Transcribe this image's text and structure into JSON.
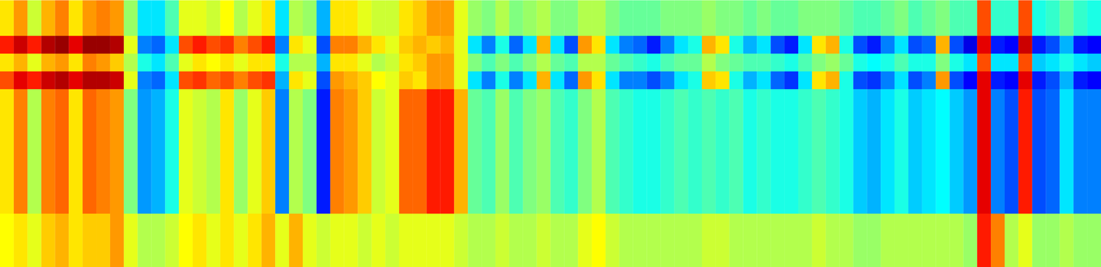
{
  "chart_data": {
    "type": "heatmap",
    "tick_labels": false,
    "zlim": [
      -1,
      1
    ],
    "cells": [
      [
        0.3,
        0.45,
        0.15,
        0.4,
        0.5,
        0.3,
        0.45,
        0.5,
        0.45,
        0.05,
        -0.3,
        -0.3,
        -0.1,
        0.2,
        0.2,
        0.15,
        0.25,
        0.1,
        0.2,
        0.3,
        -0.3,
        0.1,
        0.05,
        -0.4,
        0.3,
        0.3,
        0.2,
        0.15,
        0.15,
        0.3,
        0.35,
        0.45,
        0.45,
        0.2,
        0.05,
        0,
        0.1,
        0,
        0.05,
        0.1,
        0,
        0,
        0.1,
        0.1,
        0,
        -0.05,
        -0.05,
        -0.05,
        0,
        0,
        0,
        0.05,
        0,
        0,
        -0.05,
        0,
        -0.05,
        -0.05,
        0,
        0,
        0,
        -0.05,
        -0.1,
        -0.1,
        -0.05,
        0,
        -0.1,
        -0.05,
        0,
        -0.1,
        -0.1,
        0.6,
        -0.15,
        -0.15,
        0.6,
        -0.2,
        -0.15,
        -0.05,
        -0.15,
        -0.2
      ],
      [
        0.3,
        0.45,
        0.15,
        0.4,
        0.5,
        0.3,
        0.45,
        0.5,
        0.45,
        0.05,
        -0.3,
        -0.3,
        -0.1,
        0.2,
        0.2,
        0.15,
        0.25,
        0.1,
        0.2,
        0.3,
        -0.3,
        0.1,
        0.05,
        -0.4,
        0.3,
        0.3,
        0.2,
        0.15,
        0.15,
        0.3,
        0.35,
        0.45,
        0.45,
        0.2,
        0.05,
        0,
        0.1,
        0,
        0.05,
        0.1,
        0,
        0,
        0.1,
        0.1,
        0,
        -0.05,
        -0.05,
        -0.05,
        0,
        0,
        0,
        0.05,
        0,
        0,
        -0.05,
        0,
        -0.05,
        -0.05,
        0,
        0,
        0,
        -0.05,
        -0.1,
        -0.1,
        -0.05,
        0,
        -0.1,
        -0.05,
        0,
        -0.1,
        -0.1,
        0.6,
        -0.15,
        -0.15,
        0.6,
        -0.2,
        -0.15,
        -0.05,
        -0.15,
        -0.2
      ],
      [
        0.7,
        0.85,
        0.7,
        0.9,
        0.95,
        0.8,
        0.95,
        0.95,
        0.9,
        0.2,
        -0.5,
        -0.55,
        -0.3,
        0.6,
        0.7,
        0.6,
        0.65,
        0.5,
        0.6,
        0.7,
        -0.5,
        0.3,
        0.2,
        -0.6,
        0.5,
        0.5,
        0.4,
        0.3,
        0.2,
        0.35,
        0.4,
        0.35,
        0.4,
        0.2,
        -0.3,
        -0.5,
        -0.2,
        -0.55,
        -0.3,
        0.4,
        -0.3,
        -0.6,
        0.45,
        0.3,
        -0.3,
        -0.5,
        -0.55,
        -0.7,
        -0.5,
        -0.3,
        -0.2,
        0.4,
        0.3,
        -0.2,
        -0.4,
        -0.3,
        -0.6,
        -0.7,
        -0.3,
        0.3,
        0.4,
        -0.2,
        -0.6,
        -0.7,
        -0.5,
        -0.3,
        -0.6,
        -0.55,
        0.4,
        -0.6,
        -0.8,
        0.8,
        -0.7,
        -0.75,
        0.85,
        -0.7,
        -0.6,
        -0.4,
        -0.7,
        -0.75
      ],
      [
        0.3,
        0.4,
        0.2,
        0.4,
        0.45,
        0.3,
        0.5,
        0.45,
        0.35,
        0.1,
        -0.2,
        -0.3,
        -0.1,
        0.2,
        0.3,
        0.25,
        0.3,
        0.2,
        0.3,
        0.3,
        -0.2,
        0.1,
        0.1,
        -0.4,
        0.3,
        0.3,
        0.2,
        0.1,
        0.15,
        0.3,
        0.35,
        0.45,
        0.45,
        0.2,
        0,
        -0.1,
        0,
        -0.1,
        0,
        0.1,
        -0.05,
        -0.1,
        0.1,
        0.1,
        -0.05,
        -0.1,
        -0.15,
        -0.2,
        -0.1,
        -0.05,
        -0.05,
        0.1,
        0,
        -0.05,
        -0.1,
        -0.1,
        -0.15,
        -0.2,
        -0.1,
        0,
        0.05,
        -0.05,
        -0.2,
        -0.25,
        -0.2,
        -0.1,
        -0.2,
        -0.2,
        0,
        -0.2,
        -0.3,
        0.6,
        -0.3,
        -0.3,
        0.6,
        -0.35,
        -0.3,
        -0.2,
        -0.3,
        -0.35
      ],
      [
        0.6,
        0.8,
        0.7,
        0.85,
        0.9,
        0.8,
        0.9,
        0.9,
        0.85,
        0.2,
        -0.5,
        -0.55,
        -0.3,
        0.6,
        0.65,
        0.55,
        0.6,
        0.5,
        0.6,
        0.65,
        -0.4,
        0.3,
        0.2,
        -0.6,
        0.45,
        0.4,
        0.35,
        0.25,
        0.2,
        0.35,
        0.3,
        0.45,
        0.45,
        0.2,
        -0.3,
        -0.5,
        -0.2,
        -0.5,
        -0.3,
        0.4,
        -0.3,
        -0.55,
        0.45,
        0.3,
        -0.3,
        -0.5,
        -0.5,
        -0.6,
        -0.5,
        -0.3,
        -0.2,
        0.35,
        0.3,
        -0.2,
        -0.4,
        -0.3,
        -0.55,
        -0.65,
        -0.3,
        0.3,
        0.4,
        -0.2,
        -0.6,
        -0.65,
        -0.5,
        -0.3,
        -0.6,
        -0.5,
        0.45,
        -0.6,
        -0.75,
        0.8,
        -0.7,
        -0.75,
        0.8,
        -0.7,
        -0.6,
        -0.4,
        -0.7,
        -0.75
      ],
      [
        0.3,
        0.5,
        0.1,
        0.5,
        0.55,
        0.3,
        0.55,
        0.5,
        0.45,
        0,
        -0.45,
        -0.4,
        -0.2,
        0.2,
        0.15,
        0.1,
        0.3,
        0.05,
        0.2,
        0.35,
        -0.5,
        0.1,
        0,
        -0.7,
        0.5,
        0.45,
        0.35,
        0.15,
        0.2,
        0.55,
        0.55,
        0.7,
        0.7,
        0.4,
        -0.05,
        -0.1,
        0.05,
        -0.1,
        0,
        0.05,
        -0.1,
        -0.15,
        0,
        0.1,
        -0.1,
        -0.15,
        -0.2,
        -0.2,
        -0.15,
        -0.1,
        -0.15,
        -0.1,
        -0.15,
        -0.1,
        -0.2,
        -0.15,
        -0.2,
        -0.2,
        -0.15,
        -0.1,
        -0.15,
        -0.2,
        -0.35,
        -0.4,
        -0.3,
        -0.2,
        -0.35,
        -0.3,
        -0.25,
        -0.35,
        -0.45,
        0.8,
        -0.5,
        -0.6,
        0.7,
        -0.6,
        -0.55,
        -0.3,
        -0.5,
        -0.5
      ],
      [
        0.3,
        0.5,
        0.1,
        0.5,
        0.55,
        0.3,
        0.55,
        0.5,
        0.45,
        0,
        -0.45,
        -0.4,
        -0.2,
        0.2,
        0.15,
        0.1,
        0.3,
        0.05,
        0.2,
        0.35,
        -0.5,
        0.1,
        0,
        -0.7,
        0.5,
        0.45,
        0.35,
        0.15,
        0.2,
        0.55,
        0.55,
        0.7,
        0.7,
        0.4,
        -0.05,
        -0.1,
        0.05,
        -0.1,
        0,
        0.05,
        -0.1,
        -0.15,
        0,
        0.1,
        -0.1,
        -0.15,
        -0.2,
        -0.2,
        -0.15,
        -0.1,
        -0.15,
        -0.1,
        -0.15,
        -0.1,
        -0.2,
        -0.15,
        -0.2,
        -0.2,
        -0.15,
        -0.1,
        -0.15,
        -0.2,
        -0.35,
        -0.4,
        -0.3,
        -0.2,
        -0.35,
        -0.3,
        -0.25,
        -0.35,
        -0.45,
        0.8,
        -0.5,
        -0.6,
        0.7,
        -0.6,
        -0.55,
        -0.3,
        -0.5,
        -0.5
      ],
      [
        0.3,
        0.5,
        0.1,
        0.5,
        0.55,
        0.3,
        0.55,
        0.5,
        0.45,
        0,
        -0.45,
        -0.4,
        -0.2,
        0.2,
        0.15,
        0.1,
        0.3,
        0.05,
        0.2,
        0.35,
        -0.5,
        0.1,
        0,
        -0.7,
        0.5,
        0.45,
        0.35,
        0.15,
        0.2,
        0.55,
        0.55,
        0.7,
        0.7,
        0.4,
        -0.05,
        -0.1,
        0.05,
        -0.1,
        0,
        0.05,
        -0.1,
        -0.15,
        0,
        0.1,
        -0.1,
        -0.15,
        -0.2,
        -0.2,
        -0.15,
        -0.1,
        -0.15,
        -0.1,
        -0.15,
        -0.1,
        -0.2,
        -0.15,
        -0.2,
        -0.2,
        -0.15,
        -0.1,
        -0.15,
        -0.2,
        -0.35,
        -0.4,
        -0.3,
        -0.2,
        -0.35,
        -0.3,
        -0.25,
        -0.35,
        -0.45,
        0.8,
        -0.5,
        -0.6,
        0.7,
        -0.6,
        -0.55,
        -0.3,
        -0.5,
        -0.5
      ],
      [
        0.3,
        0.5,
        0.1,
        0.5,
        0.55,
        0.3,
        0.55,
        0.5,
        0.45,
        0,
        -0.45,
        -0.4,
        -0.2,
        0.2,
        0.15,
        0.1,
        0.3,
        0.05,
        0.2,
        0.35,
        -0.5,
        0.1,
        0,
        -0.7,
        0.5,
        0.45,
        0.35,
        0.15,
        0.2,
        0.55,
        0.55,
        0.7,
        0.7,
        0.4,
        -0.05,
        -0.1,
        0.05,
        -0.1,
        0,
        0.05,
        -0.1,
        -0.15,
        0,
        0.1,
        -0.1,
        -0.15,
        -0.2,
        -0.2,
        -0.15,
        -0.1,
        -0.15,
        -0.1,
        -0.15,
        -0.1,
        -0.2,
        -0.15,
        -0.2,
        -0.2,
        -0.15,
        -0.1,
        -0.15,
        -0.2,
        -0.35,
        -0.4,
        -0.3,
        -0.2,
        -0.35,
        -0.3,
        -0.25,
        -0.35,
        -0.45,
        0.8,
        -0.5,
        -0.6,
        0.7,
        -0.6,
        -0.55,
        -0.3,
        -0.5,
        -0.5
      ],
      [
        0.3,
        0.5,
        0.1,
        0.5,
        0.55,
        0.3,
        0.55,
        0.5,
        0.45,
        0,
        -0.45,
        -0.4,
        -0.2,
        0.2,
        0.15,
        0.1,
        0.3,
        0.05,
        0.2,
        0.35,
        -0.5,
        0.1,
        0,
        -0.7,
        0.5,
        0.45,
        0.35,
        0.15,
        0.2,
        0.55,
        0.55,
        0.7,
        0.7,
        0.4,
        -0.05,
        -0.1,
        0.05,
        -0.1,
        0,
        0.05,
        -0.1,
        -0.15,
        0,
        0.1,
        -0.1,
        -0.15,
        -0.2,
        -0.2,
        -0.15,
        -0.1,
        -0.15,
        -0.1,
        -0.15,
        -0.1,
        -0.2,
        -0.15,
        -0.2,
        -0.2,
        -0.15,
        -0.1,
        -0.15,
        -0.2,
        -0.35,
        -0.4,
        -0.3,
        -0.2,
        -0.35,
        -0.3,
        -0.25,
        -0.35,
        -0.45,
        0.8,
        -0.5,
        -0.6,
        0.7,
        -0.6,
        -0.55,
        -0.3,
        -0.5,
        -0.5
      ],
      [
        0.3,
        0.5,
        0.1,
        0.5,
        0.55,
        0.3,
        0.55,
        0.5,
        0.45,
        0,
        -0.45,
        -0.4,
        -0.2,
        0.2,
        0.15,
        0.1,
        0.3,
        0.05,
        0.2,
        0.35,
        -0.5,
        0.1,
        0,
        -0.7,
        0.5,
        0.45,
        0.35,
        0.15,
        0.2,
        0.55,
        0.55,
        0.7,
        0.7,
        0.4,
        -0.05,
        -0.1,
        0.05,
        -0.1,
        0,
        0.05,
        -0.1,
        -0.15,
        0,
        0.1,
        -0.1,
        -0.15,
        -0.2,
        -0.2,
        -0.15,
        -0.1,
        -0.15,
        -0.1,
        -0.15,
        -0.1,
        -0.2,
        -0.15,
        -0.2,
        -0.2,
        -0.15,
        -0.1,
        -0.15,
        -0.2,
        -0.35,
        -0.4,
        -0.3,
        -0.2,
        -0.35,
        -0.3,
        -0.25,
        -0.35,
        -0.45,
        0.8,
        -0.5,
        -0.6,
        0.7,
        -0.6,
        -0.55,
        -0.3,
        -0.5,
        -0.5
      ],
      [
        0.3,
        0.5,
        0.1,
        0.5,
        0.55,
        0.3,
        0.55,
        0.5,
        0.45,
        0,
        -0.45,
        -0.4,
        -0.2,
        0.2,
        0.15,
        0.1,
        0.3,
        0.05,
        0.2,
        0.35,
        -0.5,
        0.1,
        0,
        -0.7,
        0.5,
        0.45,
        0.35,
        0.15,
        0.2,
        0.55,
        0.55,
        0.7,
        0.7,
        0.4,
        -0.05,
        -0.1,
        0.05,
        -0.1,
        0,
        0.05,
        -0.1,
        -0.15,
        0,
        0.1,
        -0.1,
        -0.15,
        -0.2,
        -0.2,
        -0.15,
        -0.1,
        -0.15,
        -0.1,
        -0.15,
        -0.1,
        -0.2,
        -0.15,
        -0.2,
        -0.2,
        -0.15,
        -0.1,
        -0.15,
        -0.2,
        -0.35,
        -0.4,
        -0.3,
        -0.2,
        -0.35,
        -0.3,
        -0.25,
        -0.35,
        -0.45,
        0.8,
        -0.5,
        -0.6,
        0.7,
        -0.6,
        -0.55,
        -0.3,
        -0.5,
        -0.5
      ],
      [
        0.25,
        0.3,
        0.2,
        0.35,
        0.4,
        0.3,
        0.35,
        0.35,
        0.45,
        0.2,
        0.1,
        0.1,
        0.15,
        0.25,
        0.3,
        0.2,
        0.3,
        0.2,
        0.3,
        0.4,
        0.2,
        0.4,
        0.2,
        0.15,
        0.2,
        0.2,
        0.15,
        0.2,
        0.15,
        0.2,
        0.2,
        0.2,
        0.2,
        0.15,
        0.1,
        0.1,
        0.15,
        0.1,
        0.1,
        0.15,
        0.1,
        0.1,
        0.2,
        0.25,
        0.15,
        0.1,
        0.1,
        0.1,
        0.1,
        0.1,
        0.1,
        0.15,
        0.15,
        0.1,
        0.1,
        0.1,
        0.1,
        0.1,
        0.1,
        0.15,
        0.1,
        0.1,
        0.05,
        0.05,
        0.1,
        0.1,
        0.1,
        0.1,
        0.1,
        0.1,
        0.05,
        0.7,
        0.5,
        0.1,
        0.2,
        0.05,
        0.05,
        0.1,
        0.05,
        0.05
      ],
      [
        0.25,
        0.3,
        0.2,
        0.35,
        0.4,
        0.3,
        0.35,
        0.35,
        0.45,
        0.2,
        0.1,
        0.1,
        0.15,
        0.25,
        0.3,
        0.2,
        0.3,
        0.2,
        0.3,
        0.4,
        0.2,
        0.4,
        0.2,
        0.15,
        0.2,
        0.2,
        0.15,
        0.2,
        0.15,
        0.2,
        0.2,
        0.2,
        0.2,
        0.15,
        0.1,
        0.1,
        0.15,
        0.1,
        0.1,
        0.15,
        0.1,
        0.1,
        0.2,
        0.25,
        0.15,
        0.1,
        0.1,
        0.1,
        0.1,
        0.1,
        0.1,
        0.15,
        0.15,
        0.1,
        0.1,
        0.1,
        0.1,
        0.1,
        0.1,
        0.15,
        0.1,
        0.1,
        0.05,
        0.05,
        0.1,
        0.1,
        0.1,
        0.1,
        0.1,
        0.1,
        0.05,
        0.7,
        0.5,
        0.1,
        0.2,
        0.05,
        0.05,
        0.1,
        0.05,
        0.05
      ],
      [
        0.25,
        0.3,
        0.2,
        0.35,
        0.4,
        0.3,
        0.35,
        0.35,
        0.45,
        0.2,
        0.1,
        0.1,
        0.15,
        0.25,
        0.3,
        0.2,
        0.3,
        0.2,
        0.3,
        0.4,
        0.2,
        0.4,
        0.2,
        0.15,
        0.2,
        0.2,
        0.15,
        0.2,
        0.15,
        0.2,
        0.2,
        0.2,
        0.2,
        0.15,
        0.1,
        0.1,
        0.15,
        0.1,
        0.1,
        0.15,
        0.1,
        0.1,
        0.2,
        0.25,
        0.15,
        0.1,
        0.1,
        0.1,
        0.1,
        0.1,
        0.1,
        0.15,
        0.15,
        0.1,
        0.1,
        0.1,
        0.1,
        0.1,
        0.1,
        0.15,
        0.1,
        0.1,
        0.05,
        0.05,
        0.1,
        0.1,
        0.1,
        0.1,
        0.1,
        0.1,
        0.05,
        0.7,
        0.5,
        0.1,
        0.2,
        0.05,
        0.05,
        0.1,
        0.05,
        0.05
      ]
    ]
  }
}
